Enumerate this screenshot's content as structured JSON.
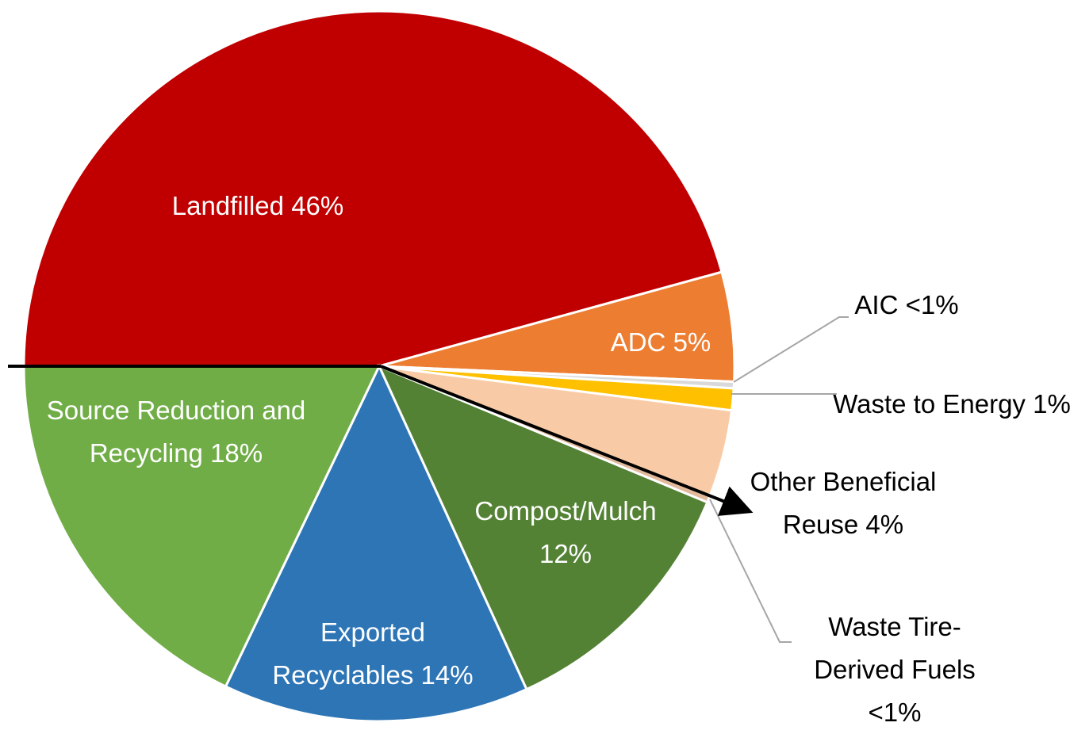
{
  "chart_data": {
    "type": "pie",
    "categories": [
      "Landfilled",
      "ADC",
      "AIC",
      "Waste to Energy",
      "Other Beneficial Reuse",
      "Waste Tire-Derived Fuels",
      "Compost/Mulch",
      "Exported Recyclables",
      "Source Reduction and Recycling"
    ],
    "values": [
      46,
      5,
      0.3,
      1,
      4,
      0.3,
      12,
      14,
      18
    ],
    "value_labels": [
      "46%",
      "5%",
      "<1%",
      "1%",
      "4%",
      "<1%",
      "12%",
      "14%",
      "18%"
    ],
    "colors": [
      "#c00000",
      "#ed7d31",
      "#d9d9d9",
      "#ffc000",
      "#f8cba6",
      "#e2b99a",
      "#548235",
      "#2e75b6",
      "#70ad47"
    ]
  }
}
